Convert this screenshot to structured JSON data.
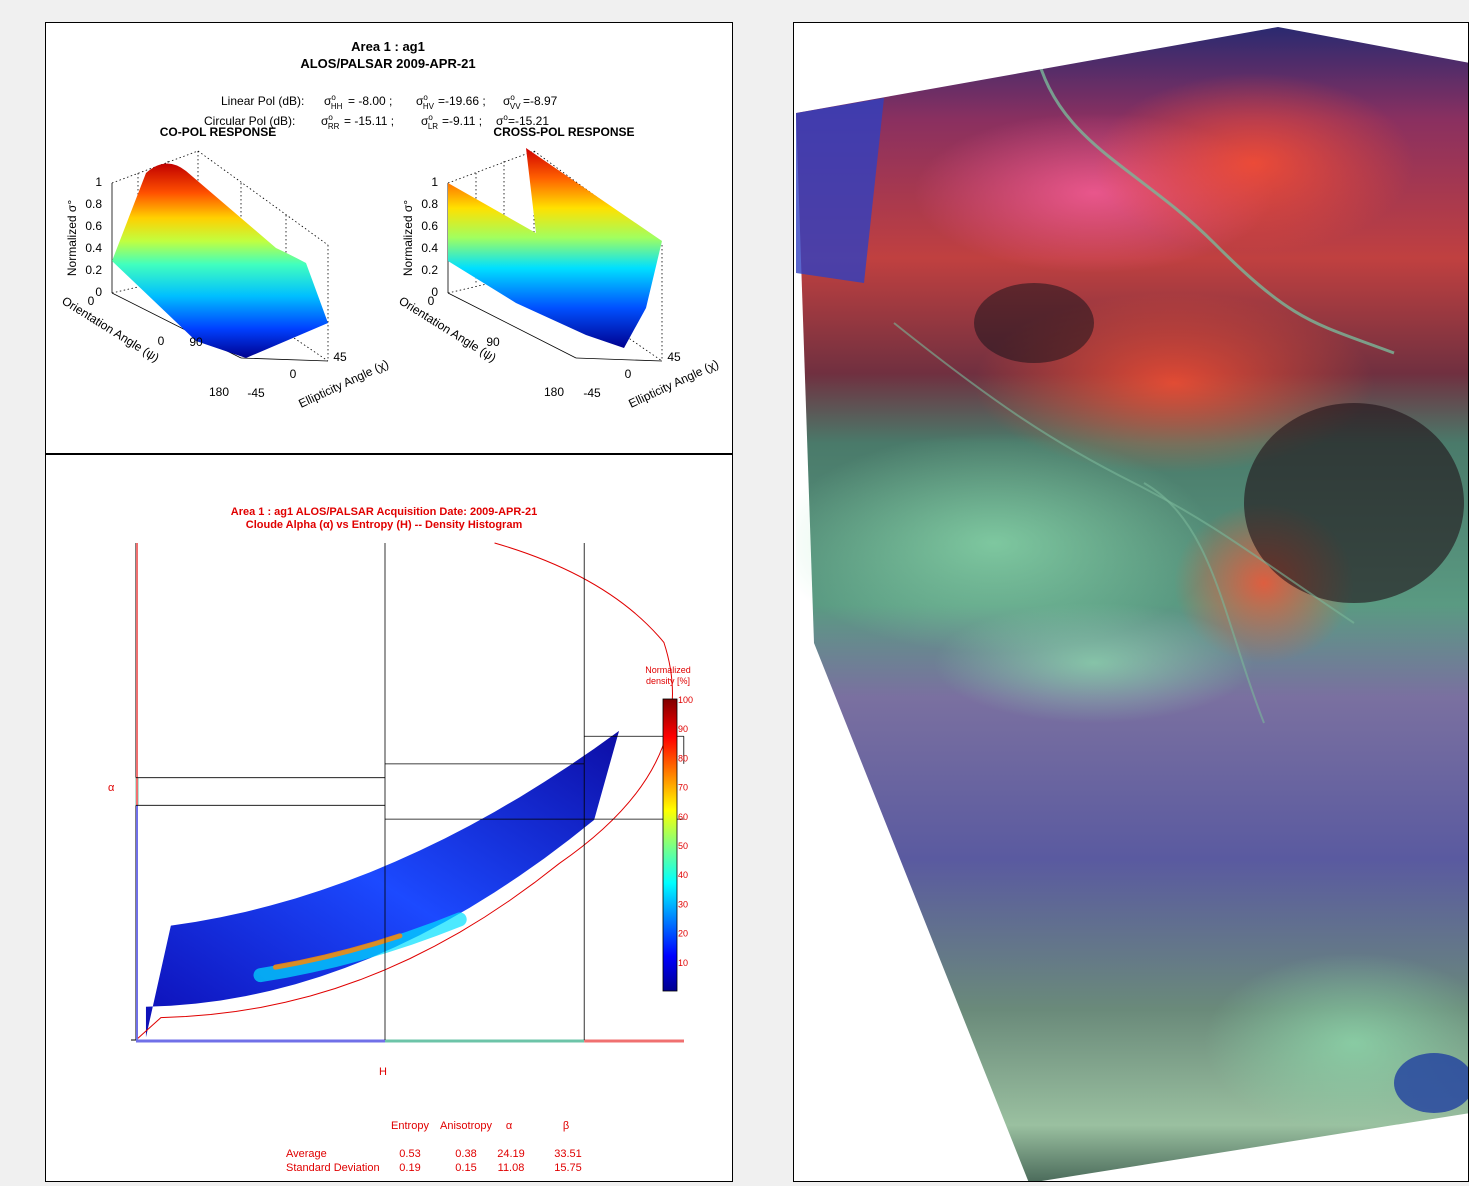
{
  "pol_panel": {
    "title_line1": "Area 1 :  ag1",
    "title_line2": "ALOS/PALSAR   2009-APR-21",
    "linear_pol_label": "Linear Pol (dB):",
    "linear_pol_hh": "= -8.00 ;",
    "linear_pol_hv": "=-19.66 ;",
    "linear_pol_vv": "=-8.97",
    "circular_pol_label": "Circular Pol (dB):",
    "circular_pol_rr": "= -15.11 ;",
    "circular_pol_lr": "=-9.11 ;",
    "circular_pol_rl": "=-15.21",
    "copol": {
      "title": "CO-POL RESPONSE",
      "zlabel": "Normalized σ°",
      "xlabel": "Orientation Angle (ψ)",
      "ylabel": "Ellipticity Angle (χ)",
      "zticks": [
        "0",
        "0.2",
        "0.4",
        "0.6",
        "0.8",
        "1"
      ],
      "xticks": [
        "0",
        "90",
        "180"
      ],
      "yticks": [
        "-45",
        "0",
        "45"
      ]
    },
    "crosspol": {
      "title": "CROSS-POL RESPONSE",
      "zlabel": "Normalized σ°",
      "xlabel": "Orientation Angle (ψ)",
      "ylabel": "Ellipticity Angle (χ)",
      "zticks": [
        "0",
        "0.2",
        "0.4",
        "0.6",
        "0.8",
        "1"
      ],
      "xticks": [
        "0",
        "90",
        "180"
      ],
      "yticks": [
        "-45",
        "0",
        "45"
      ]
    }
  },
  "chart_data": {
    "type": "heatmap",
    "title_line1": "Area 1 : ag1 ALOS/PALSAR Acquisition Date: 2009-APR-21",
    "title_line2": "Cloude Alpha (α) vs Entropy (H) -- Density Histogram",
    "xlabel": "H",
    "ylabel": "α",
    "xlim": [
      0,
      1
    ],
    "ylim": [
      0,
      90
    ],
    "zone_boundaries_H": [
      0.5,
      0.9
    ],
    "zone_boundaries_alpha": [
      40,
      42.5,
      47.5,
      50,
      55
    ],
    "colorbar_label_line1": "Normalized",
    "colorbar_label_line2": "density [%]",
    "colorbar_ticks": [
      "10",
      "20",
      "30",
      "40",
      "50",
      "60",
      "70",
      "80",
      "90",
      "100"
    ],
    "stats_headers": [
      "Entropy",
      "Anisotropy",
      "α",
      "β"
    ],
    "stats_rows": [
      {
        "label": "Average",
        "values": [
          "0.53",
          "0.38",
          "24.19",
          "33.51"
        ]
      },
      {
        "label": "Standard Deviation",
        "values": [
          "0.19",
          "0.15",
          "11.08",
          "15.75"
        ]
      }
    ],
    "colors": {
      "text": "#e00000",
      "curve": "#e00000",
      "axis_blue": "#7070e8",
      "axis_green": "#6cc4a8",
      "axis_red": "#f07070"
    }
  },
  "image_panel": {
    "description_icon": "sar-rgb-composite-image"
  }
}
